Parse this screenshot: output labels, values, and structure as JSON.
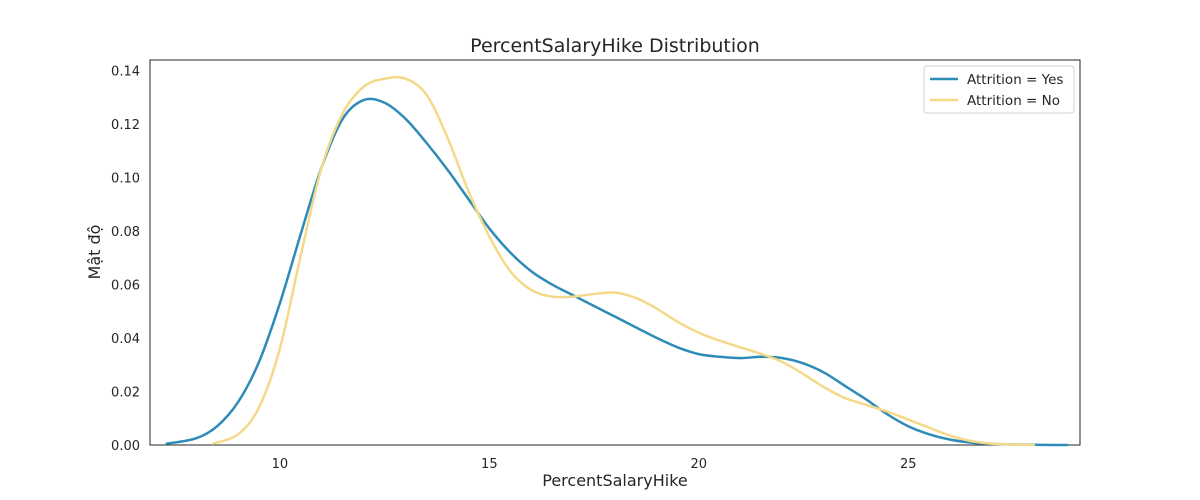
{
  "chart_data": {
    "type": "line",
    "title": "PercentSalaryHike Distribution",
    "xlabel": "PercentSalaryHike",
    "ylabel": "Mật độ",
    "xlim": [
      6.9,
      29.1
    ],
    "ylim": [
      0,
      0.144
    ],
    "xticks": [
      10,
      15,
      20,
      25
    ],
    "yticks": [
      0.0,
      0.02,
      0.04,
      0.06,
      0.08,
      0.1,
      0.12,
      0.14
    ],
    "grid": false,
    "legend_position": "top-right",
    "series": [
      {
        "name": "Attrition = Yes",
        "color": "#2e8bb8",
        "x": [
          7.3,
          8,
          8.5,
          9,
          9.5,
          10,
          10.5,
          11,
          11.5,
          12,
          12.5,
          13,
          13.5,
          14,
          14.5,
          15,
          15.5,
          16,
          16.5,
          17,
          17.5,
          18,
          18.5,
          19,
          19.5,
          20,
          20.5,
          21,
          21.5,
          22,
          22.5,
          23,
          23.5,
          24,
          24.5,
          25,
          25.5,
          26,
          26.5,
          27,
          27.5,
          28,
          28.5,
          28.8
        ],
        "values": [
          0.0005,
          0.0025,
          0.007,
          0.016,
          0.031,
          0.053,
          0.079,
          0.104,
          0.122,
          0.129,
          0.128,
          0.122,
          0.113,
          0.103,
          0.092,
          0.081,
          0.072,
          0.065,
          0.06,
          0.056,
          0.052,
          0.048,
          0.044,
          0.04,
          0.0365,
          0.034,
          0.033,
          0.0325,
          0.033,
          0.0325,
          0.0305,
          0.027,
          0.022,
          0.017,
          0.0115,
          0.007,
          0.004,
          0.002,
          0.0009,
          0.0004,
          0.0002,
          0.0001,
          0.0,
          0.0
        ]
      },
      {
        "name": "Attrition = No",
        "color": "#f5d98a",
        "x": [
          8.4,
          9,
          9.5,
          10,
          10.5,
          11,
          11.5,
          12,
          12.5,
          13,
          13.5,
          14,
          14.5,
          15,
          15.5,
          16,
          16.5,
          17,
          17.5,
          18,
          18.5,
          19,
          19.5,
          20,
          20.5,
          21,
          21.5,
          22,
          22.5,
          23,
          23.5,
          24,
          24.5,
          25,
          25.5,
          26,
          26.5,
          27,
          27.5,
          28
        ],
        "values": [
          0.0005,
          0.004,
          0.014,
          0.036,
          0.071,
          0.104,
          0.124,
          0.134,
          0.137,
          0.137,
          0.131,
          0.115,
          0.095,
          0.078,
          0.065,
          0.058,
          0.0555,
          0.0555,
          0.0565,
          0.057,
          0.055,
          0.051,
          0.046,
          0.042,
          0.039,
          0.0365,
          0.034,
          0.031,
          0.0265,
          0.0215,
          0.0175,
          0.015,
          0.0125,
          0.0095,
          0.0065,
          0.0035,
          0.0015,
          0.0005,
          0.0002,
          0.0
        ]
      }
    ]
  }
}
